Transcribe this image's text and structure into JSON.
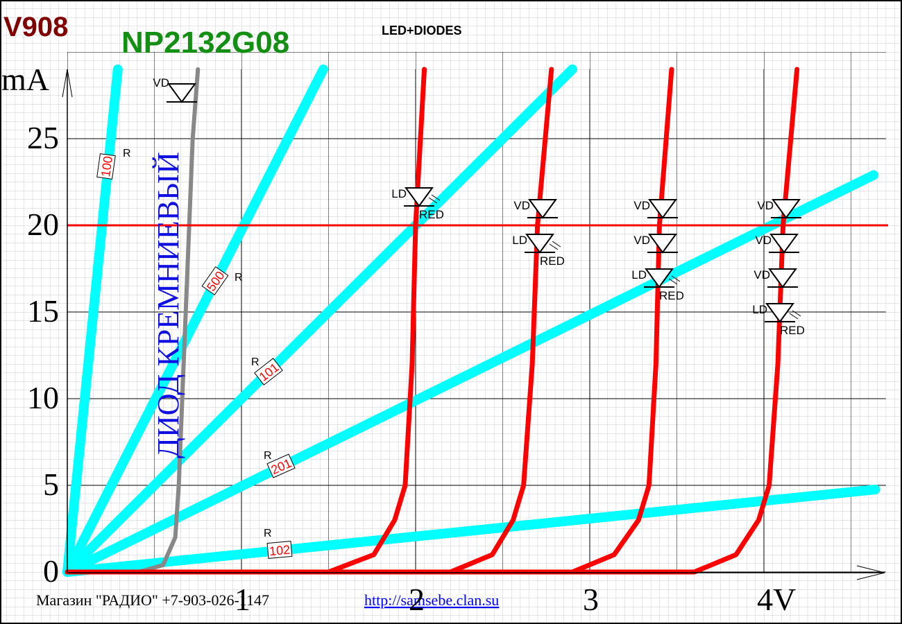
{
  "chart_data": {
    "type": "line",
    "title": "LED+DIODES",
    "model": "V908",
    "part_number": "NP2132G08",
    "y_label": "mA",
    "diode_note": "ДИОД КРЕМНИЕВЫЙ",
    "footer": "Магазин \"РАДИО\" +7-903-026-1147",
    "link": "http://samsebe.clan.su",
    "resistor_symbol": "R",
    "red_label": "RED",
    "xlim": [
      0,
      4.7
    ],
    "ylim": [
      0,
      29
    ],
    "xticks": [
      1,
      2,
      3,
      {
        "value": 4,
        "label": "4V"
      }
    ],
    "yticks": [
      0,
      5,
      10,
      15,
      20,
      25
    ],
    "grid": true,
    "hline": {
      "value": 20,
      "color": "#ff0000"
    },
    "series": [
      {
        "name": "100",
        "color": "#00ffff",
        "x": [
          0,
          0.29
        ],
        "values": [
          0,
          29
        ]
      },
      {
        "name": "500",
        "color": "#00ffff",
        "x": [
          0,
          1.47
        ],
        "values": [
          0,
          29
        ]
      },
      {
        "name": "101",
        "color": "#00ffff",
        "x": [
          0,
          2.9
        ],
        "values": [
          0,
          29
        ]
      },
      {
        "name": "201",
        "color": "#00ffff",
        "x": [
          0,
          4.63
        ],
        "values": [
          0,
          22.9
        ]
      },
      {
        "name": "102",
        "color": "#00ffff",
        "x": [
          0,
          4.64
        ],
        "values": [
          0,
          4.76
        ]
      },
      {
        "color": "#888888",
        "x": [
          0.41,
          0.55,
          0.62,
          0.64,
          0.68,
          0.72,
          0.75
        ],
        "values": [
          0,
          0.4,
          2,
          5,
          15,
          25,
          29
        ]
      },
      {
        "color": "#ff0000",
        "x": [
          0,
          1.5,
          1.76,
          1.88,
          1.94,
          1.98,
          2.0,
          2.05
        ],
        "values": [
          0,
          0,
          1,
          3,
          5,
          12,
          20,
          29
        ]
      },
      {
        "color": "#ff0000",
        "x": [
          0,
          2.2,
          2.44,
          2.56,
          2.62,
          2.67,
          2.7,
          2.78
        ],
        "values": [
          0,
          0,
          1,
          3,
          5,
          12,
          20,
          29
        ]
      },
      {
        "color": "#ff0000",
        "x": [
          0,
          2.9,
          3.14,
          3.28,
          3.34,
          3.38,
          3.4,
          3.47
        ],
        "values": [
          0,
          0,
          1,
          3,
          5,
          12,
          20,
          29
        ]
      },
      {
        "color": "#ff0000",
        "x": [
          0,
          3.6,
          3.84,
          3.97,
          4.03,
          4.08,
          4.11,
          4.19
        ],
        "values": [
          0,
          0,
          1,
          3,
          5,
          12,
          20,
          29
        ]
      }
    ],
    "diode_symbols": [
      {
        "label": "VD"
      },
      {
        "label": "LD"
      },
      {
        "label": "VD"
      },
      {
        "label": "LD"
      },
      {
        "label": "VD"
      },
      {
        "label": "VD"
      },
      {
        "label": "LD"
      },
      {
        "label": "VD"
      },
      {
        "label": "VD"
      },
      {
        "label": "VD"
      },
      {
        "label": "LD"
      }
    ]
  }
}
